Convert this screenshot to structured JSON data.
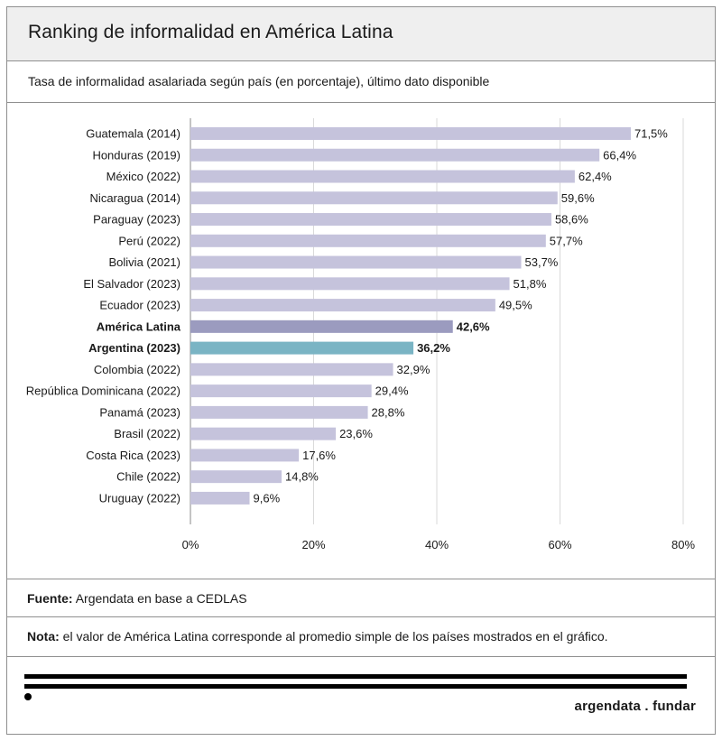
{
  "header": {
    "title": "Ranking de informalidad en América Latina",
    "subtitle": "Tasa de informalidad asalariada según país (en porcentaje), último dato disponible"
  },
  "footer": {
    "source_label": "Fuente:",
    "source_text": "Argendata en base a CEDLAS",
    "note_label": "Nota:",
    "note_text": "el valor de América Latina corresponde al promedio simple de los países mostrados en el gráfico.",
    "brand": "argendata . fundar"
  },
  "colors": {
    "default_bar": "#c5c3dc",
    "average_bar": "#9b9bbf",
    "highlight_bar": "#7ab4c4",
    "grid": "#d9d9d9",
    "axis": "#888888"
  },
  "chart_data": {
    "type": "bar",
    "orientation": "horizontal",
    "title": "Ranking de informalidad en América Latina",
    "subtitle": "Tasa de informalidad asalariada según país (en porcentaje), último dato disponible",
    "xlim": [
      0,
      80
    ],
    "x_ticks": [
      0,
      20,
      40,
      60,
      80
    ],
    "x_tick_labels": [
      "0%",
      "20%",
      "40%",
      "60%",
      "80%"
    ],
    "grid": "vertical",
    "categories": [
      "Guatemala (2014)",
      "Honduras (2019)",
      "México (2022)",
      "Nicaragua (2014)",
      "Paraguay (2023)",
      "Perú (2022)",
      "Bolivia (2021)",
      "El Salvador (2023)",
      "Ecuador (2023)",
      "América Latina",
      "Argentina (2023)",
      "Colombia (2022)",
      "República Dominicana (2022)",
      "Panamá (2023)",
      "Brasil (2022)",
      "Costa Rica (2023)",
      "Chile (2022)",
      "Uruguay (2022)"
    ],
    "values": [
      71.5,
      66.4,
      62.4,
      59.6,
      58.6,
      57.7,
      53.7,
      51.8,
      49.5,
      42.6,
      36.2,
      32.9,
      29.4,
      28.8,
      23.6,
      17.6,
      14.8,
      9.6
    ],
    "value_labels": [
      "71,5%",
      "66,4%",
      "62,4%",
      "59,6%",
      "58,6%",
      "57,7%",
      "53,7%",
      "51,8%",
      "49,5%",
      "42,6%",
      "36,2%",
      "32,9%",
      "29,4%",
      "28,8%",
      "23,6%",
      "17,6%",
      "14,8%",
      "9,6%"
    ],
    "emphasis": [
      "normal",
      "normal",
      "normal",
      "normal",
      "normal",
      "normal",
      "normal",
      "normal",
      "normal",
      "average",
      "highlight",
      "normal",
      "normal",
      "normal",
      "normal",
      "normal",
      "normal",
      "normal"
    ]
  }
}
